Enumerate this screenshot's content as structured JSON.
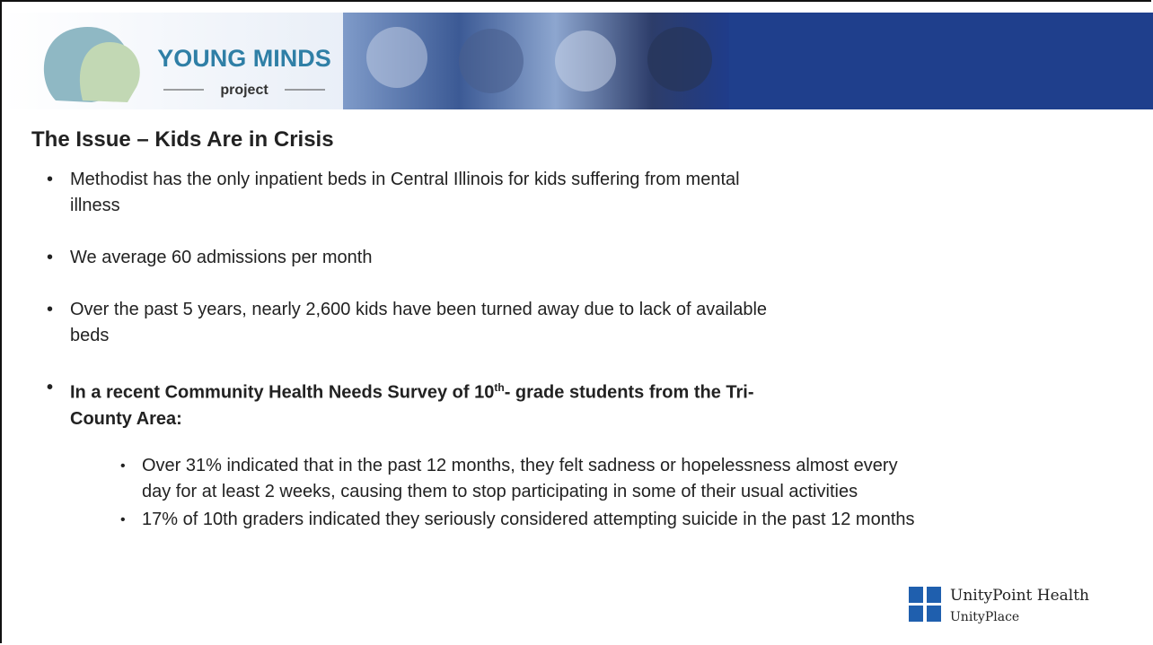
{
  "header": {
    "logo_title": "YOUNG MINDS",
    "logo_subtitle": "project"
  },
  "title": "The Issue – Kids Are in Crisis",
  "bullets": [
    "Methodist has the only inpatient beds in Central Illinois for kids suffering from mental illness",
    "We average 60 admissions per month",
    "Over the past 5 years, nearly 2,600 kids have been turned away due to lack of available beds"
  ],
  "survey_bullet": {
    "before": "In a recent Community Health Needs Survey of 10",
    "superscript": "th",
    "after": "- grade students from the Tri-County Area:"
  },
  "sub_bullets": [
    "Over 31% indicated that in the past 12 months, they felt sadness or hopelessness almost every day for at least 2 weeks, causing them to stop participating in some of their usual activities",
    "17% of 10th graders indicated they seriously considered attempting suicide in the past 12 months"
  ],
  "footer": {
    "brand": "UnityPoint Health",
    "sub_brand": "UnityPlace"
  }
}
